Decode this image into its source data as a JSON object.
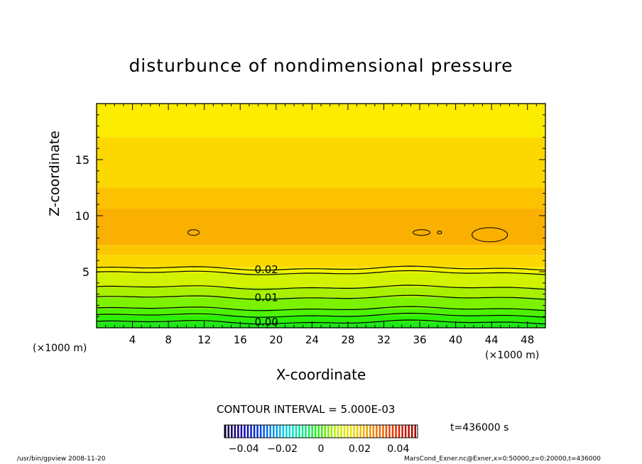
{
  "chart_data": {
    "type": "heatmap",
    "title": "disturbunce of nondimensional pressure",
    "xlabel": "X-coordinate",
    "ylabel": "Z-coordinate",
    "x_unit_left": "(×1000 m)",
    "x_unit_right": "(×1000 m)",
    "xlim": [
      0,
      50
    ],
    "ylim": [
      0,
      20
    ],
    "x_ticks": [
      4,
      8,
      12,
      16,
      20,
      24,
      28,
      32,
      36,
      40,
      44,
      48
    ],
    "y_ticks": [
      5,
      10,
      15
    ],
    "contour_interval_text": "CONTOUR INTERVAL = 5.000E-03",
    "contour_labels": [
      {
        "text": "0.02",
        "x": 17.6,
        "z": 5.2
      },
      {
        "text": "0.01",
        "x": 17.6,
        "z": 2.7
      },
      {
        "text": "0.00",
        "x": 17.6,
        "z": 0.5
      }
    ],
    "contour_levels_z": [
      0.5,
      1.1,
      1.7,
      2.7,
      3.6,
      4.9,
      5.3
    ],
    "closed_contours": [
      {
        "x": 10.8,
        "z": 8.5
      },
      {
        "x": 36.2,
        "z": 8.5
      },
      {
        "x": 38.2,
        "z": 8.5
      },
      {
        "x": 43.8,
        "z": 8.3
      }
    ],
    "colorbar": {
      "min": -0.05,
      "max": 0.05,
      "tick_values": [
        -0.04,
        -0.02,
        0,
        0.02,
        0.04
      ],
      "tick_labels": [
        "−0.04",
        "−0.02",
        "0",
        "0.02",
        "0.04"
      ],
      "colors": [
        "#0a0032",
        "#1a00a0",
        "#0030e0",
        "#0090f0",
        "#00e0e0",
        "#00f080",
        "#30f000",
        "#c0f000",
        "#f0e000",
        "#f0a000",
        "#f06000",
        "#e02000",
        "#a00000"
      ]
    },
    "bands": [
      {
        "z0": 0.0,
        "z1": 0.5,
        "color": "#1ee818"
      },
      {
        "z0": 0.5,
        "z1": 1.1,
        "color": "#2cf004"
      },
      {
        "z0": 1.1,
        "z1": 1.7,
        "color": "#4ef200"
      },
      {
        "z0": 1.7,
        "z1": 2.7,
        "color": "#7cf200"
      },
      {
        "z0": 2.7,
        "z1": 3.6,
        "color": "#a8f000"
      },
      {
        "z0": 3.6,
        "z1": 4.9,
        "color": "#d2f200"
      },
      {
        "z0": 4.9,
        "z1": 5.4,
        "color": "#f2f200"
      },
      {
        "z0": 5.4,
        "z1": 6.5,
        "color": "#fcd800"
      },
      {
        "z0": 6.5,
        "z1": 7.4,
        "color": "#fcc600"
      },
      {
        "z0": 7.4,
        "z1": 10.6,
        "color": "#fab000"
      },
      {
        "z0": 10.6,
        "z1": 12.5,
        "color": "#fcc200"
      },
      {
        "z0": 12.5,
        "z1": 17.0,
        "color": "#fcd800"
      },
      {
        "z0": 17.0,
        "z1": 20.0,
        "color": "#fcec00"
      }
    ]
  },
  "time_label": "t=436000 s",
  "footer_left": "/usr/bin/gpview   2008-11-20",
  "footer_right": "MarsCond_Exner.nc@Exner,x=0:50000,z=0:20000,t=436000"
}
